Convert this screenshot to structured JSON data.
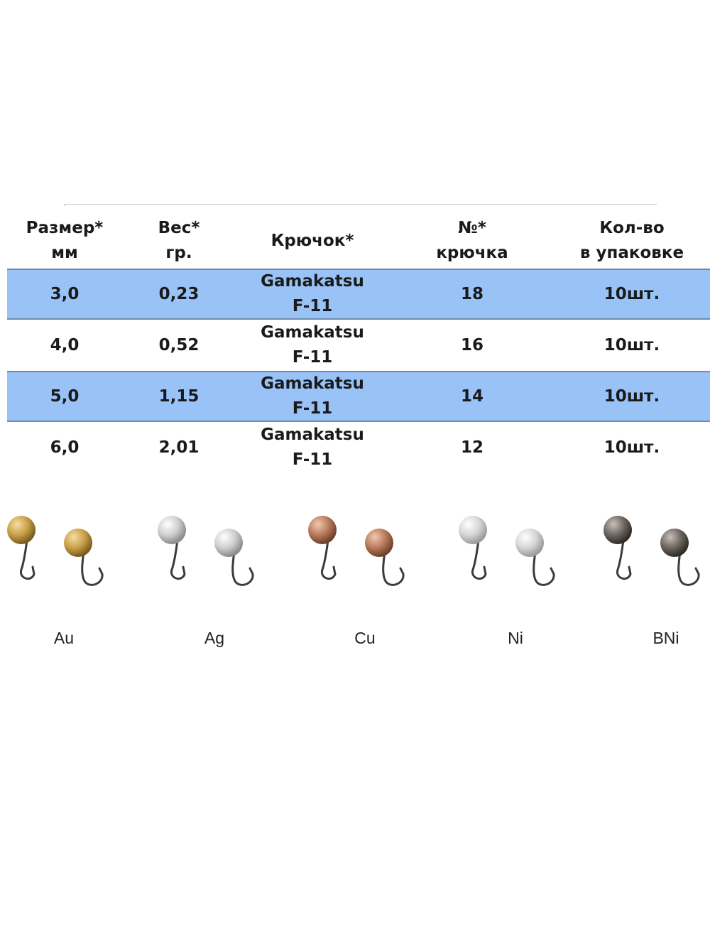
{
  "table": {
    "headers": [
      {
        "lines": [
          "Размер*",
          "мм"
        ]
      },
      {
        "lines": [
          "Вес*",
          "гр."
        ]
      },
      {
        "lines": [
          "Крючок*"
        ]
      },
      {
        "lines": [
          "№*",
          "крючка"
        ]
      },
      {
        "lines": [
          "Кол-во",
          "в упаковке"
        ]
      }
    ],
    "rows": [
      {
        "size": "3,0",
        "weight": "0,23",
        "hook_brand": "Gamakatsu",
        "hook_model": "F-11",
        "hook_no": "18",
        "qty": "10шт."
      },
      {
        "size": "4,0",
        "weight": "0,52",
        "hook_brand": "Gamakatsu",
        "hook_model": "F-11",
        "hook_no": "16",
        "qty": "10шт."
      },
      {
        "size": "5,0",
        "weight": "1,15",
        "hook_brand": "Gamakatsu",
        "hook_model": "F-11",
        "hook_no": "14",
        "qty": "10шт."
      },
      {
        "size": "6,0",
        "weight": "2,01",
        "hook_brand": "Gamakatsu",
        "hook_model": "F-11",
        "hook_no": "12",
        "qty": "10шт."
      }
    ],
    "row_shade_color": "#99c2f7"
  },
  "metals": [
    {
      "label": "Au",
      "color": "#c9a04a",
      "highlight": "#f3dfa0",
      "shade": "#7a5a1c"
    },
    {
      "label": "Ag",
      "color": "#cfcfcf",
      "highlight": "#ffffff",
      "shade": "#8a8a8a"
    },
    {
      "label": "Cu",
      "color": "#b87a5c",
      "highlight": "#f2c8b0",
      "shade": "#6e3f2a"
    },
    {
      "label": "Ni",
      "color": "#d6d6d6",
      "highlight": "#ffffff",
      "shade": "#9a9a9a"
    },
    {
      "label": "BNi",
      "color": "#6e6660",
      "highlight": "#c8c0b8",
      "shade": "#2e2a26"
    }
  ]
}
